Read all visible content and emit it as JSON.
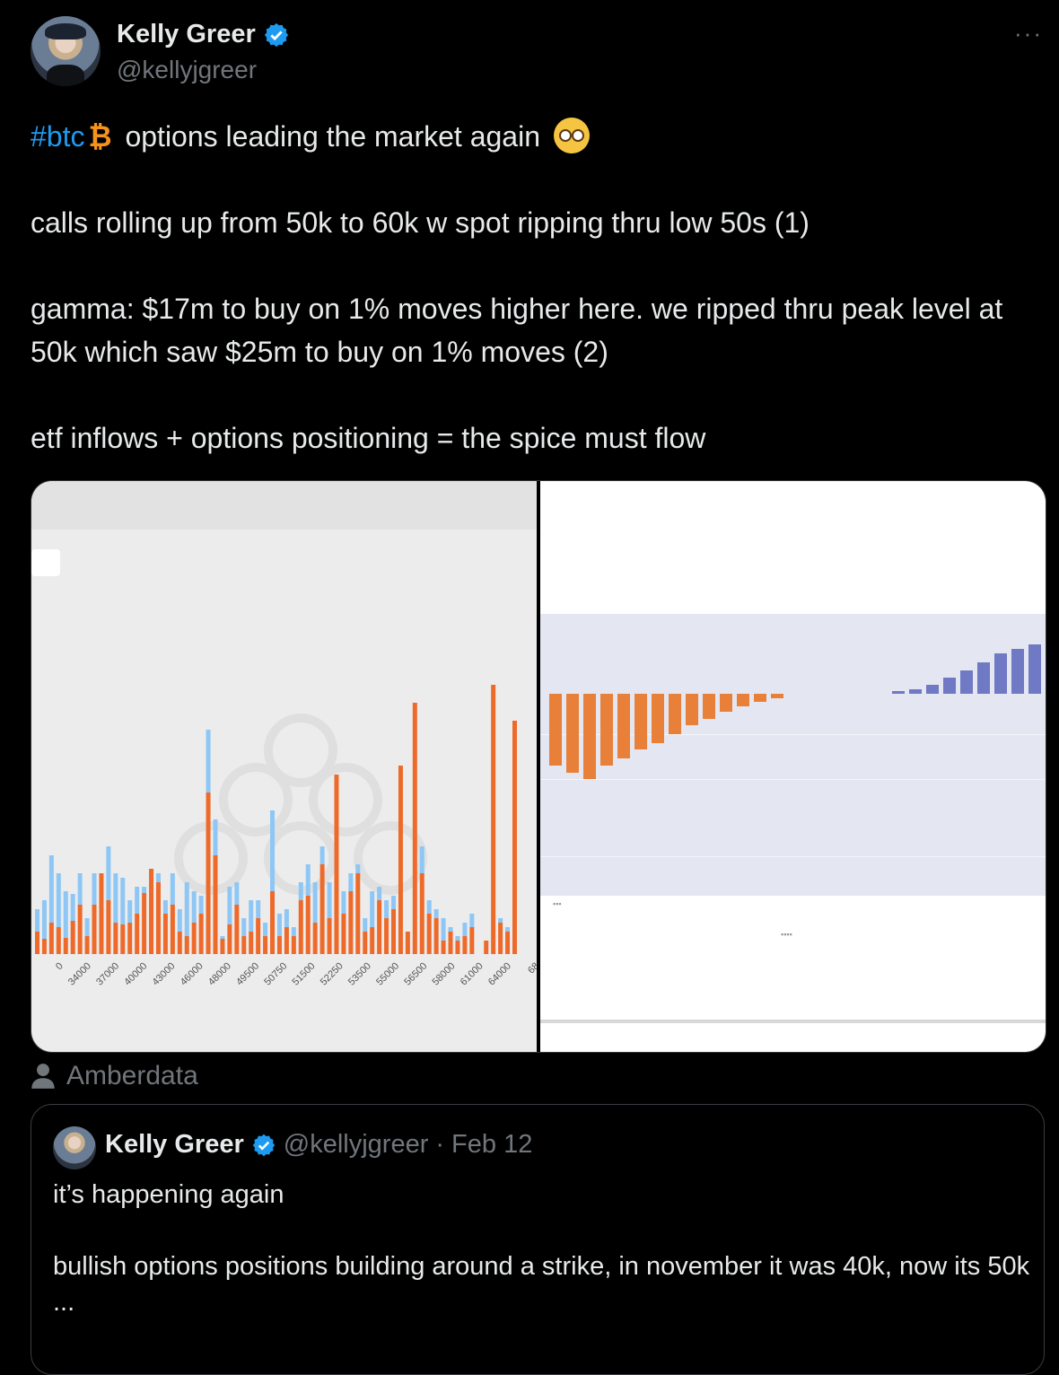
{
  "author": {
    "name": "Kelly Greer",
    "handle": "@kellyjgreer"
  },
  "more_label": "···",
  "tweet": {
    "hashtag": "#btc",
    "btc_glyph": "₿",
    "line1_rest": "options leading the market again",
    "para2": "calls rolling up from 50k to 60k w spot ripping thru low 50s (1)",
    "para3": "gamma: $17m to buy on 1% moves higher here. we ripped thru peak level at 50k which saw $25m to buy on 1% moves (2)",
    "para4": "etf inflows + options positioning = the spice must flow"
  },
  "media_source": "Amberdata",
  "chart_data": [
    {
      "type": "bar",
      "tick_labels": [
        "0",
        "34000",
        "37000",
        "40000",
        "43000",
        "46000",
        "48000",
        "49500",
        "50750",
        "51500",
        "52250",
        "53500",
        "55000",
        "56500",
        "58000",
        "61000",
        "64000",
        "68"
      ],
      "series_colors": {
        "orange": "#ee6a2a",
        "blue": "#8ec7f5"
      },
      "bars": [
        {
          "o": 25,
          "b": 50
        },
        {
          "o": 17,
          "b": 60
        },
        {
          "o": 35,
          "b": 110
        },
        {
          "o": 30,
          "b": 90
        },
        {
          "o": 18,
          "b": 70
        },
        {
          "o": 37,
          "b": 67
        },
        {
          "o": 55,
          "b": 90
        },
        {
          "o": 20,
          "b": 40
        },
        {
          "o": 55,
          "b": 90
        },
        {
          "o": 90,
          "b": 90
        },
        {
          "o": 60,
          "b": 120
        },
        {
          "o": 35,
          "b": 90
        },
        {
          "o": 33,
          "b": 85
        },
        {
          "o": 35,
          "b": 60
        },
        {
          "o": 45,
          "b": 75
        },
        {
          "o": 68,
          "b": 75
        },
        {
          "o": 95,
          "b": 95
        },
        {
          "o": 80,
          "b": 90
        },
        {
          "o": 45,
          "b": 60
        },
        {
          "o": 55,
          "b": 90
        },
        {
          "o": 25,
          "b": 50
        },
        {
          "o": 20,
          "b": 80
        },
        {
          "o": 35,
          "b": 70
        },
        {
          "o": 45,
          "b": 65
        },
        {
          "o": 180,
          "b": 250
        },
        {
          "o": 110,
          "b": 150
        },
        {
          "o": 17,
          "b": 20
        },
        {
          "o": 33,
          "b": 75
        },
        {
          "o": 55,
          "b": 80
        },
        {
          "o": 20,
          "b": 40
        },
        {
          "o": 25,
          "b": 60
        },
        {
          "o": 40,
          "b": 60
        },
        {
          "o": 20,
          "b": 35
        },
        {
          "o": 70,
          "b": 160
        },
        {
          "o": 20,
          "b": 45
        },
        {
          "o": 30,
          "b": 50
        },
        {
          "o": 20,
          "b": 30
        },
        {
          "o": 60,
          "b": 80
        },
        {
          "o": 65,
          "b": 100
        },
        {
          "o": 35,
          "b": 80
        },
        {
          "o": 100,
          "b": 120
        },
        {
          "o": 40,
          "b": 80
        },
        {
          "o": 200,
          "b": 200
        },
        {
          "o": 45,
          "b": 70
        },
        {
          "o": 70,
          "b": 90
        },
        {
          "o": 90,
          "b": 100
        },
        {
          "o": 25,
          "b": 40
        },
        {
          "o": 30,
          "b": 70
        },
        {
          "o": 60,
          "b": 75
        },
        {
          "o": 40,
          "b": 60
        },
        {
          "o": 50,
          "b": 65
        },
        {
          "o": 210,
          "b": 210
        },
        {
          "o": 25,
          "b": 25
        },
        {
          "o": 280,
          "b": 280
        },
        {
          "o": 90,
          "b": 120
        },
        {
          "o": 45,
          "b": 60
        },
        {
          "o": 40,
          "b": 50
        },
        {
          "o": 15,
          "b": 40
        },
        {
          "o": 25,
          "b": 30
        },
        {
          "o": 15,
          "b": 20
        },
        {
          "o": 20,
          "b": 35
        },
        {
          "o": 30,
          "b": 45
        },
        {
          "o": 0,
          "b": 0
        },
        {
          "o": 15,
          "b": 15
        },
        {
          "o": 300,
          "b": 300
        },
        {
          "o": 35,
          "b": 40
        },
        {
          "o": 25,
          "b": 30
        },
        {
          "o": 260,
          "b": 260
        }
      ]
    },
    {
      "type": "bar",
      "series_colors": {
        "negative": "#e8803a",
        "positive": "#6f79c4"
      },
      "values": [
        -80,
        -88,
        -95,
        -80,
        -72,
        -62,
        -55,
        -45,
        -35,
        -28,
        -20,
        -14,
        -9,
        -5,
        0,
        0,
        0,
        0,
        3,
        5,
        10,
        18,
        26,
        35,
        45,
        50,
        55,
        60,
        60
      ]
    }
  ],
  "quoted_tweet": {
    "name": "Kelly Greer",
    "handle": "@kellyjgreer",
    "date": "Feb 12",
    "text1": "it’s happening again",
    "text2": "bullish options positions building around a strike, in november it was 40k, now its 50k",
    "ellipsis": "..."
  }
}
